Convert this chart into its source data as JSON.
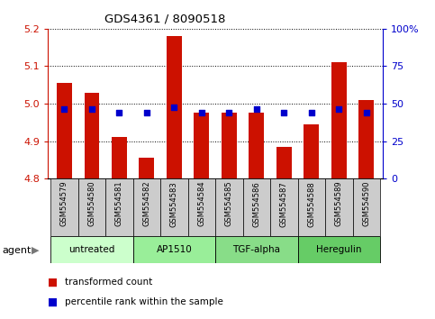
{
  "title": "GDS4361 / 8090518",
  "samples": [
    "GSM554579",
    "GSM554580",
    "GSM554581",
    "GSM554582",
    "GSM554583",
    "GSM554584",
    "GSM554585",
    "GSM554586",
    "GSM554587",
    "GSM554588",
    "GSM554589",
    "GSM554590"
  ],
  "red_values": [
    5.055,
    5.03,
    4.91,
    4.855,
    5.18,
    4.975,
    4.975,
    4.975,
    4.885,
    4.945,
    5.11,
    5.01
  ],
  "blue_values": [
    4.985,
    4.985,
    4.975,
    4.975,
    4.99,
    4.975,
    4.975,
    4.985,
    4.975,
    4.975,
    4.985,
    4.975
  ],
  "ylim_left": [
    4.8,
    5.2
  ],
  "ylim_right": [
    0,
    100
  ],
  "yticks_left": [
    4.8,
    4.9,
    5.0,
    5.1,
    5.2
  ],
  "yticks_right": [
    0,
    25,
    50,
    75,
    100
  ],
  "ytick_labels_right": [
    "0",
    "25",
    "50",
    "75",
    "100%"
  ],
  "bar_bottom": 4.8,
  "bar_color": "#cc1100",
  "dot_color": "#0000cc",
  "groups": [
    {
      "label": "untreated",
      "indices": [
        0,
        1,
        2
      ],
      "color": "#ccffcc"
    },
    {
      "label": "AP1510",
      "indices": [
        3,
        4,
        5
      ],
      "color": "#99ee99"
    },
    {
      "label": "TGF-alpha",
      "indices": [
        6,
        7,
        8
      ],
      "color": "#88dd88"
    },
    {
      "label": "Heregulin",
      "indices": [
        9,
        10,
        11
      ],
      "color": "#66cc66"
    }
  ],
  "agent_label": "agent",
  "left_axis_color": "#cc1100",
  "right_axis_color": "#0000cc",
  "grid_color": "#000000",
  "xtick_bg_color": "#cccccc",
  "legend_items": [
    {
      "label": "transformed count",
      "color": "#cc1100",
      "marker": "s"
    },
    {
      "label": "percentile rank within the sample",
      "color": "#0000cc",
      "marker": "s"
    }
  ]
}
